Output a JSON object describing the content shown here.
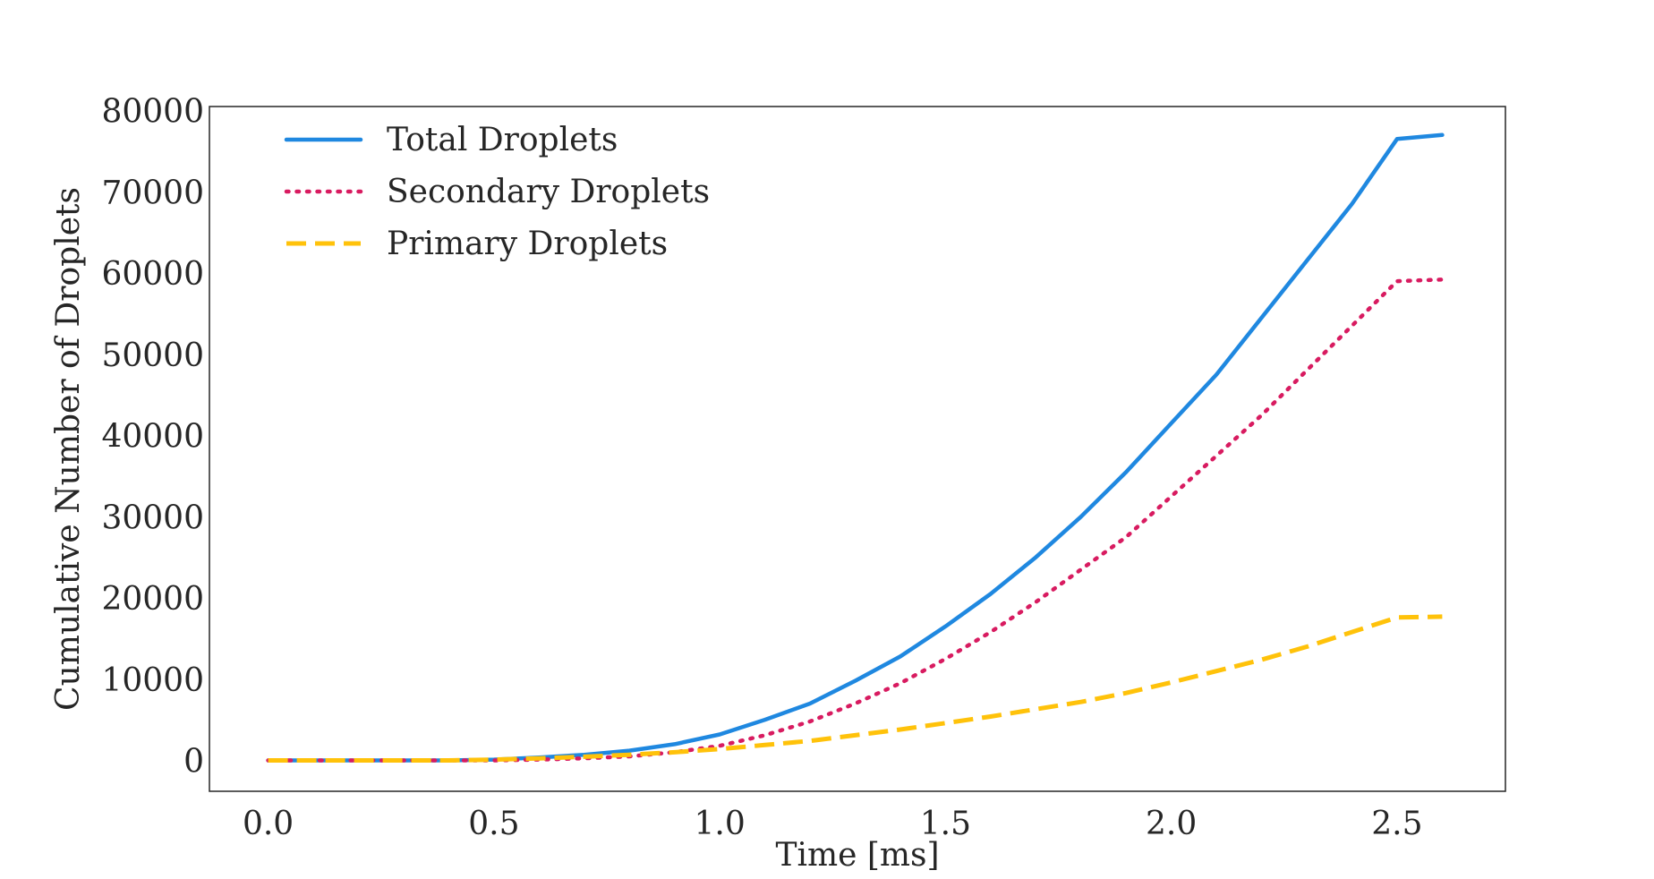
{
  "chart_data": {
    "type": "line",
    "title": "",
    "xlabel": "Time [ms]",
    "ylabel": "Cumulative Number of Droplets",
    "xlim": [
      -0.13,
      2.74
    ],
    "ylim": [
      -3800,
      80500
    ],
    "xticks": [
      0.0,
      0.5,
      1.0,
      1.5,
      2.0,
      2.5
    ],
    "xtick_labels": [
      "0.0",
      "0.5",
      "1.0",
      "1.5",
      "2.0",
      "2.5"
    ],
    "yticks": [
      0,
      10000,
      20000,
      30000,
      40000,
      50000,
      60000,
      70000,
      80000
    ],
    "ytick_labels": [
      "0",
      "10000",
      "20000",
      "30000",
      "40000",
      "50000",
      "60000",
      "70000",
      "80000"
    ],
    "grid": false,
    "legend_position": "top-left",
    "x": [
      0.0,
      0.1,
      0.2,
      0.3,
      0.4,
      0.5,
      0.6,
      0.7,
      0.8,
      0.9,
      1.0,
      1.1,
      1.2,
      1.3,
      1.4,
      1.5,
      1.6,
      1.7,
      1.8,
      1.9,
      2.0,
      2.1,
      2.2,
      2.3,
      2.4,
      2.5,
      2.6
    ],
    "series": [
      {
        "name": "Total Droplets",
        "color": "#1f88e0",
        "style": "solid",
        "values": [
          0,
          0,
          0,
          0,
          0,
          100,
          350,
          700,
          1200,
          2000,
          3200,
          5000,
          7000,
          9800,
          12800,
          16500,
          20500,
          25000,
          30000,
          35500,
          41500,
          47500,
          54500,
          61500,
          68500,
          76500,
          77000
        ]
      },
      {
        "name": "Secondary Droplets",
        "color": "#d81b60",
        "style": "dotted",
        "values": [
          0,
          0,
          0,
          0,
          0,
          0,
          100,
          250,
          500,
          1000,
          1800,
          3100,
          4800,
          7000,
          9500,
          12500,
          15800,
          19500,
          23500,
          27500,
          32500,
          37500,
          42500,
          48000,
          53500,
          59000,
          59200
        ]
      },
      {
        "name": "Primary Droplets",
        "color": "#ffc20a",
        "style": "dashed",
        "values": [
          0,
          0,
          0,
          0,
          0,
          100,
          250,
          450,
          700,
          1000,
          1400,
          1900,
          2400,
          3100,
          3800,
          4600,
          5400,
          6300,
          7200,
          8300,
          9600,
          11000,
          12400,
          14000,
          15800,
          17600,
          17700
        ]
      }
    ]
  }
}
